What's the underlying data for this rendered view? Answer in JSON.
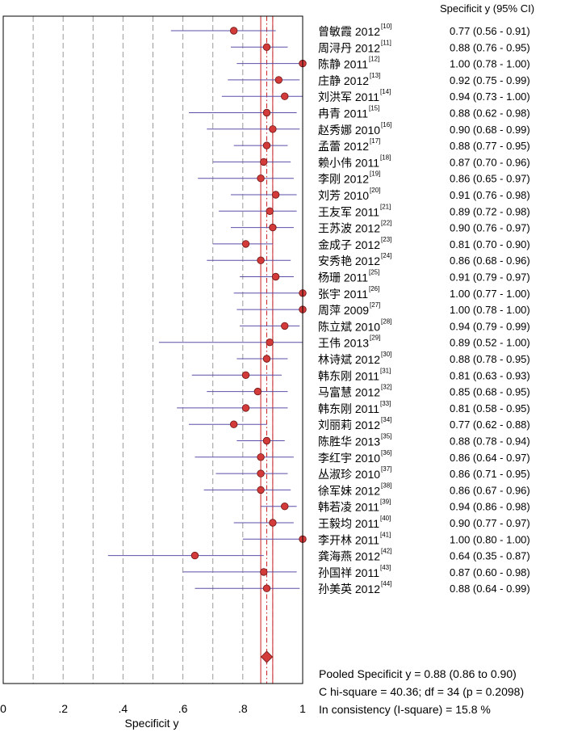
{
  "chart_data": {
    "type": "forest",
    "header": "Specificit y (95% CI)",
    "xlabel": "Specificit y",
    "xlim": [
      0,
      1
    ],
    "xticks": [
      {
        "value": 0,
        "label": "0"
      },
      {
        "value": 0.2,
        "label": ".2"
      },
      {
        "value": 0.4,
        "label": ".4"
      },
      {
        "value": 0.6,
        "label": ".6"
      },
      {
        "value": 0.8,
        "label": ".8"
      },
      {
        "value": 1,
        "label": "1"
      }
    ],
    "gridlines": [
      0.1,
      0.2,
      0.3,
      0.4,
      0.5,
      0.6,
      0.7,
      0.8,
      0.9
    ],
    "studies": [
      {
        "label": "曾敏霞 2012",
        "ref": "[10]",
        "est": 0.77,
        "lo": 0.56,
        "hi": 0.91,
        "ci_text": "0.77 (0.56 - 0.91)"
      },
      {
        "label": "周浔丹 2012",
        "ref": "[11]",
        "est": 0.88,
        "lo": 0.76,
        "hi": 0.95,
        "ci_text": "0.88 (0.76 - 0.95)"
      },
      {
        "label": "陈静 2011",
        "ref": "[12]",
        "est": 1.0,
        "lo": 0.78,
        "hi": 1.0,
        "ci_text": "1.00 (0.78 - 1.00)"
      },
      {
        "label": "庄静 2012",
        "ref": "[13]",
        "est": 0.92,
        "lo": 0.75,
        "hi": 0.99,
        "ci_text": "0.92 (0.75 - 0.99)"
      },
      {
        "label": "刘洪军 2011",
        "ref": "[14]",
        "est": 0.94,
        "lo": 0.73,
        "hi": 1.0,
        "ci_text": "0.94 (0.73 - 1.00)"
      },
      {
        "label": "冉青 2011",
        "ref": "[15]",
        "est": 0.88,
        "lo": 0.62,
        "hi": 0.98,
        "ci_text": "0.88 (0.62 - 0.98)"
      },
      {
        "label": "赵秀娜 2010",
        "ref": "[16]",
        "est": 0.9,
        "lo": 0.68,
        "hi": 0.99,
        "ci_text": "0.90 (0.68 - 0.99)"
      },
      {
        "label": "孟蕾 2012",
        "ref": "[17]",
        "est": 0.88,
        "lo": 0.77,
        "hi": 0.95,
        "ci_text": "0.88 (0.77 - 0.95)"
      },
      {
        "label": "赖小伟 2011",
        "ref": "[18]",
        "est": 0.87,
        "lo": 0.7,
        "hi": 0.96,
        "ci_text": "0.87 (0.70 - 0.96)"
      },
      {
        "label": "李刚 2012",
        "ref": "[19]",
        "est": 0.86,
        "lo": 0.65,
        "hi": 0.97,
        "ci_text": "0.86 (0.65 - 0.97)"
      },
      {
        "label": "刘芳 2010",
        "ref": "[20]",
        "est": 0.91,
        "lo": 0.76,
        "hi": 0.98,
        "ci_text": "0.91 (0.76 - 0.98)"
      },
      {
        "label": "王友军 2011",
        "ref": "[21]",
        "est": 0.89,
        "lo": 0.72,
        "hi": 0.98,
        "ci_text": "0.89 (0.72 - 0.98)"
      },
      {
        "label": "王苏波 2012",
        "ref": "[22]",
        "est": 0.9,
        "lo": 0.76,
        "hi": 0.97,
        "ci_text": "0.90 (0.76 - 0.97)"
      },
      {
        "label": "金成子 2012",
        "ref": "[23]",
        "est": 0.81,
        "lo": 0.7,
        "hi": 0.9,
        "ci_text": "0.81 (0.70 - 0.90)"
      },
      {
        "label": "安秀艳 2012",
        "ref": "[24]",
        "est": 0.86,
        "lo": 0.68,
        "hi": 0.96,
        "ci_text": "0.86 (0.68 - 0.96)"
      },
      {
        "label": "杨珊 2011",
        "ref": "[25]",
        "est": 0.91,
        "lo": 0.79,
        "hi": 0.97,
        "ci_text": "0.91 (0.79 - 0.97)"
      },
      {
        "label": "张宇 2011",
        "ref": "[26]",
        "est": 1.0,
        "lo": 0.77,
        "hi": 1.0,
        "ci_text": "1.00 (0.77 - 1.00)"
      },
      {
        "label": "周萍 2009",
        "ref": "[27]",
        "est": 1.0,
        "lo": 0.78,
        "hi": 1.0,
        "ci_text": "1.00 (0.78 - 1.00)"
      },
      {
        "label": "陈立斌 2010",
        "ref": "[28]",
        "est": 0.94,
        "lo": 0.79,
        "hi": 0.99,
        "ci_text": "0.94 (0.79 - 0.99)"
      },
      {
        "label": "王伟 2013",
        "ref": "[29]",
        "est": 0.89,
        "lo": 0.52,
        "hi": 1.0,
        "ci_text": "0.89 (0.52 - 1.00)"
      },
      {
        "label": "林诗斌 2012",
        "ref": "[30]",
        "est": 0.88,
        "lo": 0.78,
        "hi": 0.95,
        "ci_text": "0.88 (0.78 - 0.95)"
      },
      {
        "label": "韩东刚 2011",
        "ref": "[31]",
        "est": 0.81,
        "lo": 0.63,
        "hi": 0.93,
        "ci_text": "0.81 (0.63 - 0.93)"
      },
      {
        "label": "马富慧 2012",
        "ref": "[32]",
        "est": 0.85,
        "lo": 0.68,
        "hi": 0.95,
        "ci_text": "0.85 (0.68 - 0.95)"
      },
      {
        "label": "韩东刚 2011",
        "ref": "[33]",
        "est": 0.81,
        "lo": 0.58,
        "hi": 0.95,
        "ci_text": "0.81 (0.58 - 0.95)"
      },
      {
        "label": "刘丽莉 2012",
        "ref": "[34]",
        "est": 0.77,
        "lo": 0.62,
        "hi": 0.88,
        "ci_text": "0.77 (0.62 - 0.88)"
      },
      {
        "label": "陈胜华 2013",
        "ref": "[35]",
        "est": 0.88,
        "lo": 0.78,
        "hi": 0.94,
        "ci_text": "0.88 (0.78 - 0.94)"
      },
      {
        "label": "李红宇 2010",
        "ref": "[36]",
        "est": 0.86,
        "lo": 0.64,
        "hi": 0.97,
        "ci_text": "0.86 (0.64 - 0.97)"
      },
      {
        "label": "丛淑珍 2010",
        "ref": "[37]",
        "est": 0.86,
        "lo": 0.71,
        "hi": 0.95,
        "ci_text": "0.86 (0.71 - 0.95)"
      },
      {
        "label": "徐军妹 2012",
        "ref": "[38]",
        "est": 0.86,
        "lo": 0.67,
        "hi": 0.96,
        "ci_text": "0.86 (0.67 - 0.96)"
      },
      {
        "label": "韩若凌 2011",
        "ref": "[39]",
        "est": 0.94,
        "lo": 0.86,
        "hi": 0.98,
        "ci_text": "0.94 (0.86 - 0.98)"
      },
      {
        "label": "王毅均 2011",
        "ref": "[40]",
        "est": 0.9,
        "lo": 0.77,
        "hi": 0.97,
        "ci_text": "0.90 (0.77 - 0.97)"
      },
      {
        "label": "李开林 2011",
        "ref": "[41]",
        "est": 1.0,
        "lo": 0.8,
        "hi": 1.0,
        "ci_text": "1.00 (0.80 - 1.00)"
      },
      {
        "label": "龚海燕 2012",
        "ref": "[42]",
        "est": 0.64,
        "lo": 0.35,
        "hi": 0.87,
        "ci_text": "0.64 (0.35 - 0.87)"
      },
      {
        "label": "孙国祥 2011",
        "ref": "[43]",
        "est": 0.87,
        "lo": 0.6,
        "hi": 0.98,
        "ci_text": "0.87 (0.60 - 0.98)"
      },
      {
        "label": "孙美英 2012",
        "ref": "[44]",
        "est": 0.88,
        "lo": 0.64,
        "hi": 0.99,
        "ci_text": "0.88 (0.64 - 0.99)"
      }
    ],
    "pooled": {
      "est": 0.88,
      "lo": 0.86,
      "hi": 0.9
    },
    "footer": [
      "Pooled Specificit y = 0.88 (0.86 to 0.90)",
      "C hi-square = 40.36; df =  34 (p = 0.2098)",
      "In consistency (I-square) = 15.8 %"
    ],
    "colors": {
      "ci_line": "#5b4fa8",
      "marker_fill": "#d33a3a",
      "marker_stroke": "#6b1414",
      "pooled_line": "#cc2222",
      "grid": "#9a9a9a"
    }
  }
}
